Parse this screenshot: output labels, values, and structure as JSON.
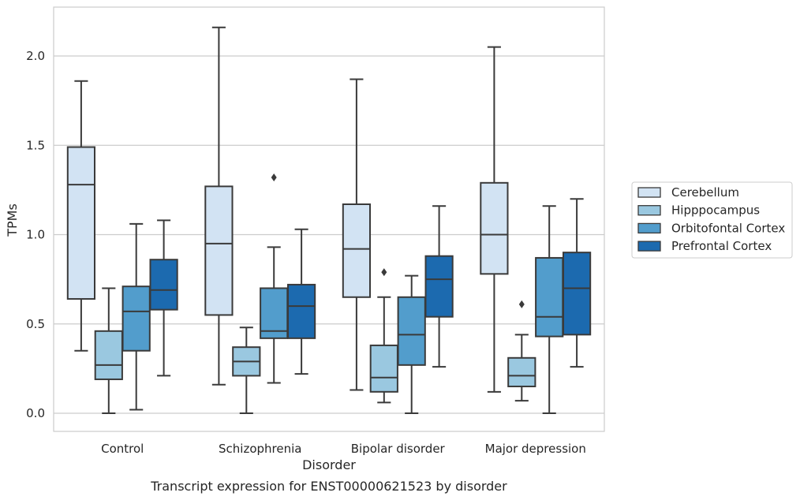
{
  "chart_data": {
    "type": "box",
    "caption": "Transcript expression for ENST00000621523 by disorder",
    "xlabel": "Disorder",
    "ylabel": "TPMs",
    "ylim": [
      -0.1,
      2.28
    ],
    "yticks": [
      "0.0",
      "0.5",
      "1.0",
      "1.5",
      "2.0"
    ],
    "ytick_values": [
      0.0,
      0.5,
      1.0,
      1.5,
      2.0
    ],
    "grid": "horizontal",
    "legend_position": "right",
    "categories": [
      "Control",
      "Schizophrenia",
      "Bipolar disorder",
      "Major depression"
    ],
    "series": [
      {
        "name": "Cerebellum",
        "color": "#d2e3f3",
        "boxes": [
          {
            "whisker_low": 0.35,
            "q1": 0.64,
            "median": 1.28,
            "q3": 1.49,
            "whisker_high": 1.86,
            "outliers": []
          },
          {
            "whisker_low": 0.16,
            "q1": 0.55,
            "median": 0.95,
            "q3": 1.27,
            "whisker_high": 2.16,
            "outliers": []
          },
          {
            "whisker_low": 0.13,
            "q1": 0.65,
            "median": 0.92,
            "q3": 1.17,
            "whisker_high": 1.87,
            "outliers": []
          },
          {
            "whisker_low": 0.12,
            "q1": 0.78,
            "median": 1.0,
            "q3": 1.29,
            "whisker_high": 2.05,
            "outliers": []
          }
        ]
      },
      {
        "name": "Hipppocampus",
        "color": "#9ac8e0",
        "boxes": [
          {
            "whisker_low": 0.0,
            "q1": 0.19,
            "median": 0.27,
            "q3": 0.46,
            "whisker_high": 0.7,
            "outliers": []
          },
          {
            "whisker_low": 0.0,
            "q1": 0.21,
            "median": 0.29,
            "q3": 0.37,
            "whisker_high": 0.48,
            "outliers": []
          },
          {
            "whisker_low": 0.06,
            "q1": 0.12,
            "median": 0.2,
            "q3": 0.38,
            "whisker_high": 0.65,
            "outliers": [
              0.79
            ]
          },
          {
            "whisker_low": 0.07,
            "q1": 0.15,
            "median": 0.21,
            "q3": 0.31,
            "whisker_high": 0.44,
            "outliers": [
              0.61
            ]
          }
        ]
      },
      {
        "name": "Orbitofontal Cortex",
        "color": "#529dcc",
        "boxes": [
          {
            "whisker_low": 0.02,
            "q1": 0.35,
            "median": 0.57,
            "q3": 0.71,
            "whisker_high": 1.06,
            "outliers": []
          },
          {
            "whisker_low": 0.17,
            "q1": 0.42,
            "median": 0.46,
            "q3": 0.7,
            "whisker_high": 0.93,
            "outliers": [
              1.32
            ]
          },
          {
            "whisker_low": 0.0,
            "q1": 0.27,
            "median": 0.44,
            "q3": 0.65,
            "whisker_high": 0.77,
            "outliers": []
          },
          {
            "whisker_low": 0.0,
            "q1": 0.43,
            "median": 0.54,
            "q3": 0.87,
            "whisker_high": 1.16,
            "outliers": []
          }
        ]
      },
      {
        "name": "Prefrontal Cortex",
        "color": "#1c6aaf",
        "boxes": [
          {
            "whisker_low": 0.21,
            "q1": 0.58,
            "median": 0.69,
            "q3": 0.86,
            "whisker_high": 1.08,
            "outliers": []
          },
          {
            "whisker_low": 0.22,
            "q1": 0.42,
            "median": 0.6,
            "q3": 0.72,
            "whisker_high": 1.03,
            "outliers": []
          },
          {
            "whisker_low": 0.26,
            "q1": 0.54,
            "median": 0.75,
            "q3": 0.88,
            "whisker_high": 1.16,
            "outliers": []
          },
          {
            "whisker_low": 0.26,
            "q1": 0.44,
            "median": 0.7,
            "q3": 0.9,
            "whisker_high": 1.2,
            "outliers": []
          }
        ]
      }
    ]
  }
}
